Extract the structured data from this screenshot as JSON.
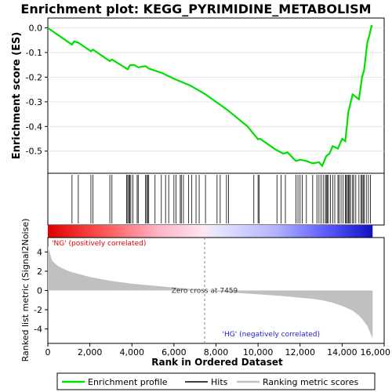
{
  "chart_data": {
    "type": "line",
    "title": "Enrichment plot: KEGG_PYRIMIDINE_METABOLISM",
    "es_panel": {
      "ylabel": "Enrichment score (ES)",
      "ylim": [
        -0.59,
        0.04
      ],
      "yticks": [
        0.0,
        -0.1,
        -0.2,
        -0.3,
        -0.4,
        -0.5
      ],
      "ytick_labels": [
        "0.0",
        "-0.1",
        "-0.2",
        "-0.3",
        "-0.4",
        "-0.5"
      ],
      "series_name": "Enrichment profile",
      "line_color": "#00e000",
      "x": [
        0,
        1150,
        1250,
        1450,
        2050,
        2150,
        2950,
        3050,
        3800,
        3900,
        4100,
        4300,
        4650,
        4800,
        5400,
        6100,
        6800,
        7500,
        8500,
        9500,
        10000,
        10100,
        10800,
        11200,
        11400,
        11800,
        12000,
        12300,
        12600,
        12900,
        13050,
        13250,
        13400,
        13550,
        13800,
        14000,
        14150,
        14300,
        14500,
        14800,
        14950,
        15050,
        15200,
        15300,
        15400,
        15450
      ],
      "y": [
        0.0,
        -0.068,
        -0.055,
        -0.06,
        -0.095,
        -0.088,
        -0.135,
        -0.128,
        -0.168,
        -0.152,
        -0.15,
        -0.16,
        -0.155,
        -0.165,
        -0.182,
        -0.21,
        -0.235,
        -0.27,
        -0.33,
        -0.4,
        -0.452,
        -0.45,
        -0.492,
        -0.51,
        -0.505,
        -0.54,
        -0.535,
        -0.54,
        -0.55,
        -0.545,
        -0.56,
        -0.52,
        -0.51,
        -0.48,
        -0.49,
        -0.45,
        -0.46,
        -0.34,
        -0.27,
        -0.29,
        -0.2,
        -0.17,
        -0.06,
        -0.03,
        0.008,
        0.005
      ]
    },
    "hits": [
      1150,
      1450,
      2050,
      2150,
      2950,
      3050,
      3750,
      3800,
      3850,
      3900,
      3950,
      4050,
      4250,
      4300,
      4650,
      4700,
      4750,
      4800,
      5100,
      5400,
      5600,
      5750,
      6000,
      6100,
      6300,
      6350,
      6450,
      6700,
      6850,
      7050,
      7200,
      7500,
      8050,
      8200,
      8500,
      8600,
      9800,
      10000,
      10050,
      10900,
      11100,
      11300,
      11800,
      11900,
      12000,
      12100,
      12300,
      12600,
      12800,
      12900,
      13000,
      13100,
      13200,
      13250,
      13300,
      13350,
      13450,
      13550,
      13650,
      13800,
      13850,
      13950,
      14050,
      14150,
      14200,
      14250,
      14300,
      14350,
      14400,
      14500,
      14550,
      14650,
      14800,
      14900,
      14950,
      15000,
      15050,
      15150,
      15250,
      15350
    ],
    "metric_panel": {
      "ylabel": "Ranked list metric (Signal2Noise)",
      "ylim": [
        -5.5,
        5.5
      ],
      "yticks": [
        4,
        2,
        0,
        -2,
        -4
      ],
      "ytick_labels": [
        "4",
        "2",
        "0",
        "-2",
        "-4"
      ],
      "series_name": "Ranking metric scores",
      "fill_color": "#c0c0c0",
      "x": [
        0,
        200,
        500,
        1000,
        1500,
        2000,
        3000,
        4000,
        5000,
        6000,
        7000,
        7459,
        8000,
        9000,
        10000,
        11000,
        12000,
        12500,
        13000,
        13500,
        14000,
        14500,
        14800,
        15000,
        15200,
        15300,
        15450
      ],
      "y": [
        4.6,
        3.1,
        2.5,
        2.0,
        1.7,
        1.4,
        1.0,
        0.7,
        0.5,
        0.3,
        0.12,
        0.0,
        -0.12,
        -0.25,
        -0.4,
        -0.55,
        -0.75,
        -0.85,
        -1.0,
        -1.25,
        -1.6,
        -2.1,
        -2.6,
        -3.1,
        -3.7,
        -4.2,
        -5.0
      ],
      "zero_cross_label": "Zero cross at 7459",
      "zero_cross": 7459,
      "pos_label": "'NG' (positively correlated)",
      "neg_label": "'HG' (negatively correlated)"
    },
    "xaxis": {
      "xlabel": "Rank in Ordered Dataset",
      "xlim": [
        0,
        16000
      ],
      "xticks": [
        0,
        2000,
        4000,
        6000,
        8000,
        10000,
        12000,
        14000,
        16000
      ],
      "xtick_labels": [
        "0",
        "2,000",
        "4,000",
        "6,000",
        "8,000",
        "10,000",
        "12,000",
        "14,000",
        "16,000"
      ],
      "n_genes": 15450
    },
    "legend": {
      "placement": "bottom",
      "items": [
        {
          "label": "Enrichment profile",
          "color": "#00e000"
        },
        {
          "label": "Hits",
          "color": "#000000"
        },
        {
          "label": "Ranking metric scores",
          "color": "#c0c0c0"
        }
      ]
    }
  }
}
